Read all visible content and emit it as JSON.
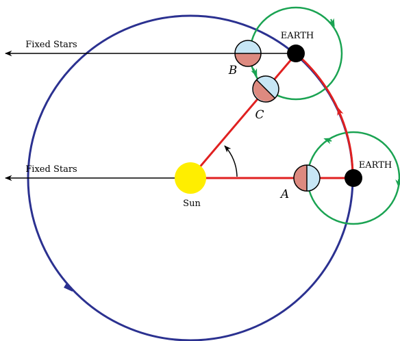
{
  "fixed_stars": [
    "Fixed Stars",
    "Fixed Stars"
  ],
  "earth": [
    "EARTH",
    "EARTH"
  ],
  "sun": "Sun",
  "points": [
    "A",
    "B",
    "C"
  ]
}
